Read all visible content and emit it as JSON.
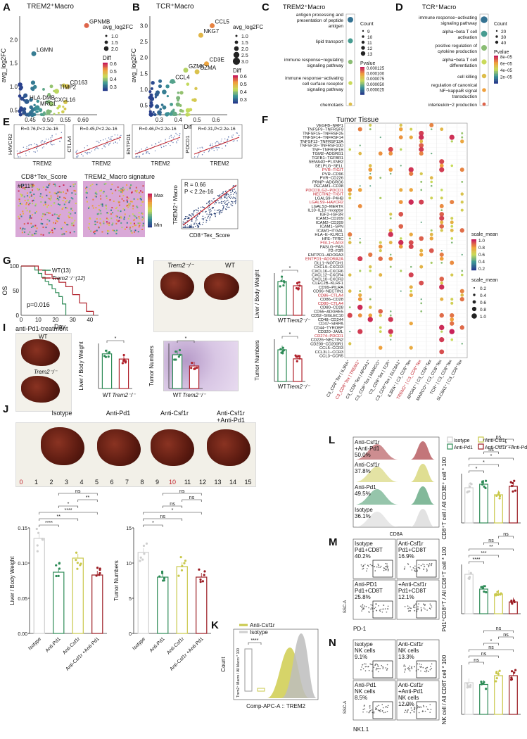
{
  "panels": {
    "A": {
      "letter": "A",
      "title": "TREM2⁺Macro",
      "ylabel": "avg_log2FC",
      "xlabel": "Diff",
      "xticks": [
        "0.45",
        "0.50",
        "0.55",
        "0.60"
      ],
      "yticks": [
        "0.5",
        "1.0",
        "1.5",
        "2.0"
      ],
      "genes": [
        "GPNMB",
        "LGMN",
        "TIMP2",
        "CD163",
        "HLA-DMB",
        "CXCL16",
        "MRC1"
      ],
      "legend_size_title": "avg_log2FC",
      "legend_sizes": [
        "1.0",
        "1.5",
        "2.0"
      ],
      "legend_color_title": "Diff",
      "legend_colors": [
        "0.6",
        "0.5",
        "0.4",
        "0.3"
      ]
    },
    "B": {
      "letter": "B",
      "title": "TCR⁺Macro",
      "ylabel": "avg_log2FC",
      "xlabel": "Diff",
      "xticks": [
        "0.3",
        "0.4",
        "0.5",
        "0.6"
      ],
      "yticks": [
        "0.5",
        "1.0",
        "1.5",
        "2.0",
        "2.5",
        "3.0"
      ],
      "genes": [
        "CCL5",
        "NKG7",
        "CD3E",
        "GZMK",
        "GZMA",
        "CCL4"
      ],
      "legend_size_title": "avg_log2FC",
      "legend_sizes": [
        "1.0",
        "1.5",
        "2.0",
        "2.5",
        "3.0"
      ],
      "legend_color_title": "Diff",
      "legend_colors": [
        "0.6",
        "0.5",
        "0.4",
        "0.3"
      ]
    },
    "C": {
      "letter": "C",
      "title": "TREM2⁺Macro",
      "terms": [
        "antigen processing and presentation of peptide antigen",
        "lipid transport",
        "immune response−regulating signaling pathway",
        "immune response−activating cell surface receptor signaling pathway",
        "chemotaxis"
      ],
      "count_title": "Count",
      "counts": [
        "9",
        "10",
        "11",
        "12",
        "13"
      ],
      "p_title": "Pvalue",
      "pvals": [
        "0.000125",
        "0.000100",
        "0.000075",
        "0.000050",
        "0.000025"
      ]
    },
    "D": {
      "letter": "D",
      "title": "TCR⁺Macro",
      "terms": [
        "immune response−activating signaling pathway",
        "alpha−beta T cell activation",
        "positive regulation of cytokine production",
        "alpha−beta T cell differentiation",
        "cell killing",
        "regulation of canonical NF−kappaB signal transduction",
        "interleukin−2 production"
      ],
      "count_title": "Count",
      "counts": [
        "20",
        "30",
        "40"
      ],
      "p_title": "Pvalue",
      "pvals": [
        "8e−05",
        "6e−05",
        "4e−05",
        "2e−05"
      ]
    },
    "E": {
      "letter": "E",
      "corrs": [
        {
          "gene": "HAVCR2",
          "stat": "R=0.76,P<2.2e-16"
        },
        {
          "gene": "CTLA4",
          "stat": "R=0.45,P<2.2e-16"
        },
        {
          "gene": "ENTPD1",
          "stat": "R=0.46,P<2.2e-16"
        },
        {
          "gene": "PDCD1",
          "stat": "R=0.31,P<2.2e-16"
        }
      ],
      "xlabel": "TREM2",
      "map1_title": "CD8⁺Tex_Score",
      "map2_title": "TREM2_Macro signature",
      "sample": "#P11T",
      "max": "Max",
      "min": "Min",
      "scatter_r": "R = 0.66",
      "scatter_p": "P < 2.2e-16",
      "scatter_y": "TREM2⁺ Macro",
      "scatter_x": "CD8⁺Tex_Score"
    },
    "F": {
      "letter": "F",
      "title": "Tumor Tissue",
      "pairs": [
        "VEGFB−NRP1",
        "TNFSF9−TNFRSF9",
        "TNFSF15−TNFRSF25",
        "TNFSF14−TNFRSF14",
        "TNFSF12−TNFRSF12A",
        "TNFSF10−TNFRSF10D",
        "TNF−TNFRSF1B",
        "TGM2−ADGRG1",
        "TGFB1−TGFBR1",
        "SEMA4D−PLXNB2",
        "SELPLG−SELL",
        "PVR−TIGIT",
        "PVR−CD96",
        "PVR−CD226",
        "PRNP−ADGRG6",
        "PECAM1−CD38",
        "PDCD1LG2−PDCD1",
        "NECTIN2−TIGIT",
        "LGALS9−P4HB",
        "LGALS9−HAVCR2",
        "LGALS3−MERTK",
        "IL10−IL10−receptor",
        "IGF2−IGF2R",
        "ICAM3−CD209",
        "ICAM2−CD209",
        "ICAM1−SPN",
        "ICAM1−ITGAL",
        "HLA−E−KLRC1",
        "HFE−TFRC",
        "FGL1−LAG3",
        "FASLG−FAS",
        "F2−F2R",
        "ENTPD1−ADORA3",
        "ENTPD1−ADORA2A",
        "DLL1−NOTCH1",
        "CXCL9−CXCR3",
        "CXCL16−CXCR6",
        "CXCL12−CXCR4",
        "CXCL10−CXCR3",
        "CLEC2B−KLRF1",
        "CD99−PILRA",
        "CD96−NECTIN1",
        "CD86−CTLA4",
        "CD86−CD28",
        "CD80−CTLA4",
        "CD80−CD28",
        "CD55−ADGRE5",
        "CD52−SIGLEC10",
        "CD48−CD244",
        "CD47−SIRPA",
        "CD44−TYROBP",
        "CD320−JAML",
        "CD274−PDCD1",
        "CD226−NECTIN2",
        "CD200−CD200R1",
        "CCL5−CCR3",
        "CCL3L1−CCR3",
        "CCL3−CCR5"
      ],
      "red_pairs": [
        "PVR−TIGIT",
        "PDCD1LG2−PDCD1",
        "NECTIN2−TIGIT",
        "LGALS9−HAVCR2",
        "FGL1−LAG3",
        "ENTPD1−ADORA2A",
        "CD86−CTLA4",
        "CD80−CTLA4",
        "CD274−PDCD1"
      ],
      "cols": [
        "C3_CD8⁺Tex | IL3RA⁺",
        "C3_CD8⁺Tex | TREM2⁺",
        "C3_CD8⁺Tex | APOA1⁺",
        "C3_CD8⁺Tex | MARCO⁺",
        "C3_CD8⁺Tex | TCR⁺",
        "C3_CD8⁺Tex | SLC8A1⁺",
        "IL3RA⁺ | C3_CD8⁺Tex",
        "TREM2⁺ | C3_CD8⁺Tex",
        "APOA1⁺ | C3_CD8⁺Tex",
        "MARCO⁺ | C3_CD8⁺Tex",
        "TCR⁺ | C3_CD8⁺Tex",
        "SLC8A1⁺ | C3_CD8⁺Tex"
      ],
      "scale_title": "scale_mean",
      "scale_colors": [
        "1.0",
        "0.8",
        "0.6",
        "0.4",
        "0.2"
      ],
      "scale_sizes": [
        "0.2",
        "0.4",
        "0.6",
        "0.8",
        "1.0"
      ]
    },
    "G": {
      "letter": "G",
      "ylabel": "OS",
      "xlabel": "Day",
      "xticks": [
        "0",
        "10",
        "20",
        "30",
        "40"
      ],
      "yticks": [
        "0",
        "50",
        "100"
      ],
      "p": "p=0.016",
      "wt": "WT(13)",
      "ko": "Trem2⁻/⁻(12)"
    },
    "H": {
      "letter": "H",
      "ko": "Trem2⁻/⁻",
      "wt": "WT",
      "y1": "Liver / Body Weight",
      "y2": "Tumor Numbers",
      "sig": "*",
      "x": [
        "WT",
        "Trem2⁻/⁻"
      ],
      "scalebar": "scale"
    },
    "I": {
      "letter": "I",
      "treat": "anti-Pd1-treatment",
      "wt": "WT",
      "ko": "Trem2⁻/⁻",
      "y1": "Liver / Body Weight",
      "y2": "Tumor Numbers",
      "sig": "*",
      "x": [
        "WT",
        "Trem2⁻/⁻"
      ]
    },
    "J": {
      "letter": "J",
      "groups": [
        "Isotype",
        "Anti-Pd1",
        "Anti-Csf1r",
        "Anti-Csf1r\n+Anti-Pd1"
      ],
      "ruler": [
        "0",
        "1",
        "2",
        "3",
        "4",
        "5",
        "6",
        "7",
        "8",
        "9",
        "10",
        "11",
        "12",
        "13",
        "14",
        "15"
      ],
      "y1": "Liver / Body Weight",
      "y2": "Tumor Numbers",
      "y1ticks": [
        "0.00",
        "0.05",
        "0.10",
        "0.15"
      ],
      "y2ticks": [
        "0",
        "5",
        "10",
        "15"
      ],
      "xlabels": [
        "Isotype",
        "Anti-Pd1",
        "Anti-Csf1r",
        "Anti-Csf1r\n+Anti-Pd1"
      ],
      "sig1": [
        "****",
        "**",
        "****",
        "*",
        "**",
        "ns"
      ],
      "sig2": [
        "*",
        "ns",
        "*",
        "ns",
        "ns",
        "ns"
      ]
    },
    "K": {
      "letter": "K",
      "legend": [
        "Anti-Csf1r",
        "Isotype"
      ],
      "ylabel": "Count",
      "xlabel": "Comp-APC-A :: TREM2",
      "bar_y": "Trem2⁺ Macro / All Macro * 100",
      "sig": "****"
    },
    "L": {
      "letter": "L",
      "legend": [
        "Isotype",
        "Anti-Csf1r",
        "Anti-Pd1",
        "Anti-Csf1r\n+Anti-Pd1"
      ],
      "rows": [
        {
          "name": "Anti-Csf1r\n+Anti-Pd1",
          "pct": "50.0%"
        },
        {
          "name": "Anti-Csf1r",
          "pct": "37.8%"
        },
        {
          "name": "Anti-Pd1",
          "pct": "49.5%"
        },
        {
          "name": "Isotype",
          "pct": "36.1%"
        }
      ],
      "xlabel": "CD8A",
      "bar_y": "CD8⁺T cell / All CD3E⁺ cell * 100",
      "sigs": [
        "*",
        "*",
        "*",
        "ns",
        "*",
        "ns"
      ]
    },
    "M": {
      "letter": "M",
      "gates": [
        {
          "name": "Isotype\nPd1+CD8T",
          "pct": "40.2%"
        },
        {
          "name": "Anti-Csf1r\nPd1+CD8T",
          "pct": "16.9%"
        },
        {
          "name": "Anti-PD1\nPd1+CD8T",
          "pct": "25.8%"
        },
        {
          "name": "+Anti-Csf1r\nPd1+CD8T",
          "pct": "12.1%"
        }
      ],
      "x": "PD-1",
      "y": "SSC-A",
      "bar_y": "Pd1⁺CD8⁺T / All CD8⁺T cell * 100",
      "sigs": [
        "****",
        "***",
        "**",
        "ns",
        "ns"
      ]
    },
    "N": {
      "letter": "N",
      "gates": [
        {
          "name": "Isotype\nNK cells",
          "pct": "9.1%"
        },
        {
          "name": "Anti-Csf1r\nNK cells",
          "pct": "13.3%"
        },
        {
          "name": "Anti-Pd1\nNK cells",
          "pct": "8.5%"
        },
        {
          "name": "Anti-Csf1r\n+Anti-Pd1\nNK cells",
          "pct": "12.0%"
        }
      ],
      "x": "NK1.1",
      "y": "SSC-A",
      "bar_y": "NK cell / All CD8T cell * 100",
      "sigs": [
        "ns",
        "ns",
        "ns",
        "*",
        "ns",
        "ns"
      ]
    }
  },
  "colors": {
    "iso": "#cfcfcf",
    "pd1": "#2e8b57",
    "csf": "#c9c84a",
    "combo": "#9b1b22",
    "wt": "#2e8b57",
    "ko": "#b0202a"
  },
  "chart_data": [
    {
      "type": "scatter",
      "title": "TREM2⁺Macro",
      "xlabel": "Diff",
      "ylabel": "avg_log2FC",
      "points": [
        {
          "label": "GPNMB",
          "x": 0.61,
          "y": 2.3
        },
        {
          "label": "LGMN",
          "x": 0.46,
          "y": 1.7
        },
        {
          "label": "CD163",
          "x": 0.555,
          "y": 1.0
        },
        {
          "label": "TIMP2",
          "x": 0.525,
          "y": 0.9
        },
        {
          "label": "CXCL16",
          "x": 0.51,
          "y": 0.63
        },
        {
          "label": "HLA-DMB",
          "x": 0.44,
          "y": 0.68
        },
        {
          "label": "MRC1",
          "x": 0.47,
          "y": 0.55
        }
      ]
    },
    {
      "type": "scatter",
      "title": "TCR⁺Macro",
      "xlabel": "Diff",
      "ylabel": "avg_log2FC",
      "points": [
        {
          "label": "CCL5",
          "x": 0.58,
          "y": 3.0
        },
        {
          "label": "NKG7",
          "x": 0.52,
          "y": 2.7
        },
        {
          "label": "CD3E",
          "x": 0.55,
          "y": 1.8
        },
        {
          "label": "GZMK",
          "x": 0.44,
          "y": 1.6
        },
        {
          "label": "GZMA",
          "x": 0.5,
          "y": 1.55
        },
        {
          "label": "CCL4",
          "x": 0.37,
          "y": 1.25
        }
      ]
    },
    {
      "type": "bar",
      "title": "Trem2 WT vs KO",
      "categories": [
        "WT",
        "Trem2⁻/⁻"
      ],
      "series": [
        {
          "name": "Liver / Body Weight",
          "values": [
            0.12,
            0.105
          ]
        },
        {
          "name": "Tumor Numbers",
          "values": [
            10.5,
            7.5
          ]
        }
      ]
    },
    {
      "type": "bar",
      "title": "anti-Pd1-treatment",
      "categories": [
        "WT",
        "Trem2⁻/⁻"
      ],
      "series": [
        {
          "name": "Liver / Body Weight",
          "values": [
            0.1,
            0.085
          ]
        },
        {
          "name": "Tumor Numbers",
          "values": [
            12,
            8
          ]
        }
      ]
    },
    {
      "type": "bar",
      "categories": [
        "Isotype",
        "Anti-Pd1",
        "Anti-Csf1r",
        "Anti-Csf1r+Anti-Pd1"
      ],
      "series": [
        {
          "name": "Liver / Body Weight",
          "values": [
            0.135,
            0.087,
            0.107,
            0.083
          ]
        },
        {
          "name": "Tumor Numbers",
          "values": [
            11.5,
            8,
            9.5,
            8
          ]
        }
      ],
      "ylim": [
        0,
        0.15
      ]
    },
    {
      "type": "line",
      "title": "OS",
      "xlabel": "Day",
      "ylabel": "OS",
      "series": [
        {
          "name": "WT(13)",
          "x": [
            0,
            8,
            10,
            12,
            14,
            16,
            18,
            20,
            22,
            24,
            26
          ],
          "y": [
            100,
            92,
            85,
            77,
            69,
            62,
            54,
            46,
            38,
            23,
            0
          ]
        },
        {
          "name": "Trem2⁻/⁻(12)",
          "x": [
            0,
            10,
            14,
            18,
            22,
            26,
            30,
            34,
            38,
            42
          ],
          "y": [
            100,
            92,
            83,
            75,
            67,
            58,
            42,
            25,
            8,
            0
          ]
        }
      ]
    }
  ]
}
